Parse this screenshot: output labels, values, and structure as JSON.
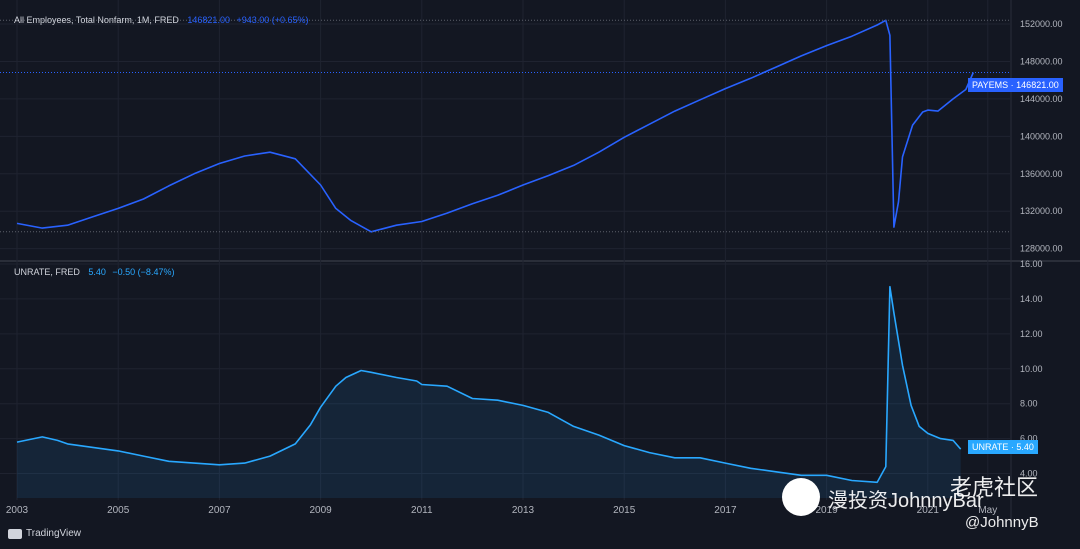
{
  "pane1": {
    "title": "All Employees, Total Nonfarm, 1M, FRED",
    "value": "146821.00",
    "change": "+943.00 (+0.65%)",
    "tag": "PAYEMS · 146821.00",
    "color": "#2962ff"
  },
  "pane2": {
    "title": "UNRATE, FRED",
    "value": "5.40",
    "change": "−0.50 (−8.47%)",
    "tag": "UNRATE · 5.40",
    "color": "#29a8ff"
  },
  "branding": {
    "tradingview": "TradingView"
  },
  "watermark": {
    "wechat": "漫投资JohnnyBar",
    "tiger": "老虎社区",
    "handle": "@JohnnyB"
  },
  "chart_data": [
    {
      "type": "line",
      "series": [
        {
          "name": "PAYEMS",
          "values": [
            [
              2003.0,
              130700
            ],
            [
              2003.5,
              130200
            ],
            [
              2004.0,
              130500
            ],
            [
              2004.5,
              131400
            ],
            [
              2005.0,
              132300
            ],
            [
              2005.5,
              133300
            ],
            [
              2006.0,
              134700
            ],
            [
              2006.5,
              136000
            ],
            [
              2007.0,
              137100
            ],
            [
              2007.5,
              137900
            ],
            [
              2008.0,
              138300
            ],
            [
              2008.5,
              137600
            ],
            [
              2009.0,
              134800
            ],
            [
              2009.3,
              132300
            ],
            [
              2009.6,
              131000
            ],
            [
              2010.0,
              129800
            ],
            [
              2010.5,
              130500
            ],
            [
              2011.0,
              130900
            ],
            [
              2011.5,
              131800
            ],
            [
              2012.0,
              132800
            ],
            [
              2012.5,
              133700
            ],
            [
              2013.0,
              134800
            ],
            [
              2013.5,
              135800
            ],
            [
              2014.0,
              136900
            ],
            [
              2014.5,
              138300
            ],
            [
              2015.0,
              139900
            ],
            [
              2015.5,
              141300
            ],
            [
              2016.0,
              142700
            ],
            [
              2016.5,
              143900
            ],
            [
              2017.0,
              145100
            ],
            [
              2017.5,
              146200
            ],
            [
              2018.0,
              147400
            ],
            [
              2018.5,
              148600
            ],
            [
              2019.0,
              149700
            ],
            [
              2019.5,
              150700
            ],
            [
              2020.0,
              151900
            ],
            [
              2020.17,
              152400
            ],
            [
              2020.25,
              150800
            ],
            [
              2020.33,
              130300
            ],
            [
              2020.42,
              133000
            ],
            [
              2020.5,
              137800
            ],
            [
              2020.7,
              141200
            ],
            [
              2020.9,
              142600
            ],
            [
              2021.0,
              142800
            ],
            [
              2021.2,
              142700
            ],
            [
              2021.5,
              144000
            ],
            [
              2021.75,
              145000
            ],
            [
              2021.9,
              146821
            ]
          ]
        }
      ],
      "yticks": [
        128000,
        132000,
        136000,
        140000,
        144000,
        148000,
        152000
      ],
      "ylim": [
        127000,
        153500
      ]
    },
    {
      "type": "area",
      "series": [
        {
          "name": "UNRATE",
          "values": [
            [
              2003.0,
              5.8
            ],
            [
              2003.5,
              6.1
            ],
            [
              2003.8,
              5.9
            ],
            [
              2004.0,
              5.7
            ],
            [
              2004.5,
              5.5
            ],
            [
              2005.0,
              5.3
            ],
            [
              2005.5,
              5.0
            ],
            [
              2006.0,
              4.7
            ],
            [
              2006.5,
              4.6
            ],
            [
              2007.0,
              4.5
            ],
            [
              2007.5,
              4.6
            ],
            [
              2008.0,
              5.0
            ],
            [
              2008.5,
              5.7
            ],
            [
              2008.8,
              6.8
            ],
            [
              2009.0,
              7.8
            ],
            [
              2009.3,
              9.0
            ],
            [
              2009.5,
              9.5
            ],
            [
              2009.8,
              9.9
            ],
            [
              2010.0,
              9.8
            ],
            [
              2010.5,
              9.5
            ],
            [
              2010.9,
              9.3
            ],
            [
              2011.0,
              9.1
            ],
            [
              2011.5,
              9.0
            ],
            [
              2012.0,
              8.3
            ],
            [
              2012.5,
              8.2
            ],
            [
              2013.0,
              7.9
            ],
            [
              2013.5,
              7.5
            ],
            [
              2014.0,
              6.7
            ],
            [
              2014.5,
              6.2
            ],
            [
              2015.0,
              5.6
            ],
            [
              2015.5,
              5.2
            ],
            [
              2016.0,
              4.9
            ],
            [
              2016.5,
              4.9
            ],
            [
              2017.0,
              4.6
            ],
            [
              2017.5,
              4.3
            ],
            [
              2018.0,
              4.1
            ],
            [
              2018.5,
              3.9
            ],
            [
              2019.0,
              3.9
            ],
            [
              2019.5,
              3.6
            ],
            [
              2020.0,
              3.5
            ],
            [
              2020.17,
              4.4
            ],
            [
              2020.25,
              14.7
            ],
            [
              2020.33,
              13.2
            ],
            [
              2020.5,
              10.2
            ],
            [
              2020.67,
              7.9
            ],
            [
              2020.83,
              6.7
            ],
            [
              2021.0,
              6.3
            ],
            [
              2021.25,
              6.0
            ],
            [
              2021.5,
              5.9
            ],
            [
              2021.65,
              5.4
            ]
          ]
        }
      ],
      "yticks": [
        4.0,
        6.0,
        8.0,
        10.0,
        12.0,
        14.0,
        16.0
      ],
      "ylim": [
        2.6,
        16.0
      ]
    }
  ],
  "xticks": [
    "2003",
    "2005",
    "2007",
    "2009",
    "2011",
    "2013",
    "2015",
    "2017",
    "2019",
    "2021",
    "May"
  ]
}
